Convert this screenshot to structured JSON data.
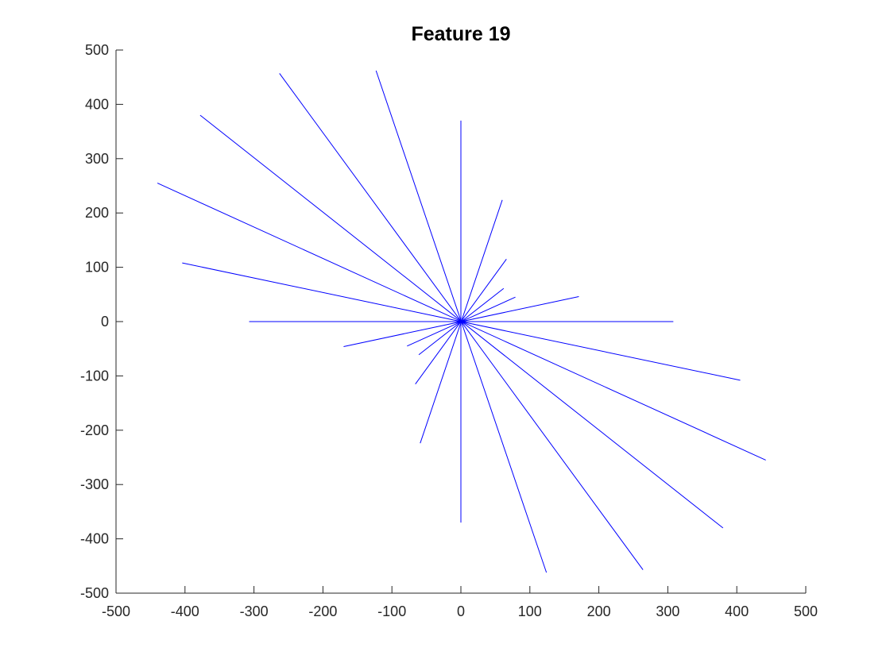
{
  "chart_data": {
    "type": "line",
    "title": "Feature 19",
    "xlabel": "",
    "ylabel": "",
    "xlim": [
      -500,
      500
    ],
    "ylim": [
      -500,
      500
    ],
    "x_ticks": [
      -500,
      -400,
      -300,
      -200,
      -100,
      0,
      100,
      200,
      300,
      400,
      500
    ],
    "y_ticks": [
      -500,
      -400,
      -300,
      -200,
      -100,
      0,
      100,
      200,
      300,
      400,
      500
    ],
    "x_tick_labels": [
      "-500",
      "-400",
      "-300",
      "-200",
      "-100",
      "0",
      "100",
      "200",
      "300",
      "400",
      "500"
    ],
    "y_tick_labels": [
      "-500",
      "-400",
      "-300",
      "-200",
      "-100",
      "0",
      "100",
      "200",
      "300",
      "400",
      "500"
    ],
    "grid": false,
    "line_color": "#0000ff",
    "series": [
      {
        "x": [
          -307,
          308
        ],
        "y": [
          0,
          0
        ]
      },
      {
        "x": [
          0,
          0
        ],
        "y": [
          370,
          -370
        ]
      },
      {
        "x": [
          -123,
          124
        ],
        "y": [
          462,
          -462
        ]
      },
      {
        "x": [
          -263,
          264
        ],
        "y": [
          457,
          -457
        ]
      },
      {
        "x": [
          -378,
          380
        ],
        "y": [
          380,
          -380
        ]
      },
      {
        "x": [
          -440,
          442
        ],
        "y": [
          255,
          -255
        ]
      },
      {
        "x": [
          -404,
          405
        ],
        "y": [
          108,
          -108
        ]
      },
      {
        "x": [
          60,
          -59
        ],
        "y": [
          224,
          -224
        ]
      },
      {
        "x": [
          66,
          -66
        ],
        "y": [
          115,
          -115
        ]
      },
      {
        "x": [
          62,
          -61
        ],
        "y": [
          61,
          -61
        ]
      },
      {
        "x": [
          79,
          -78
        ],
        "y": [
          45,
          -45
        ]
      },
      {
        "x": [
          171,
          -170
        ],
        "y": [
          46,
          -46
        ]
      }
    ]
  }
}
